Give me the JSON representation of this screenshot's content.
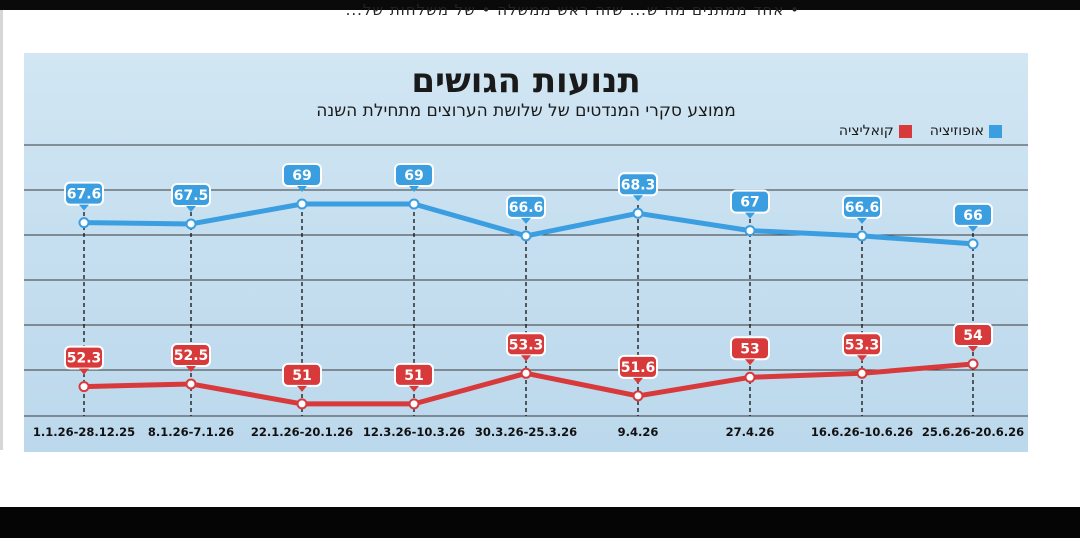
{
  "page": {
    "top_text": "• אחד ממתנים מה ש... שזה ראש ממשלה • של משלחות של..."
  },
  "colors": {
    "opposition": "#3b9ee0",
    "coalition": "#d8393a",
    "gridline": "#3a3a3a"
  },
  "chart_data": {
    "type": "line",
    "title": "תנועות הגושים",
    "subtitle": "ממוצע סקרי המנדטים של שלושת הערוצים מתחילת השנה",
    "xlabel": "",
    "ylabel": "",
    "categories": [
      "1.1.26-28.12.25",
      "8.1.26-7.1.26",
      "22.1.26-20.1.26",
      "12.3.26-10.3.26",
      "30.3.26-25.3.26",
      "9.4.26",
      "27.4.26",
      "16.6.26-10.6.26",
      "25.6.26-20.6.26"
    ],
    "series": [
      {
        "name": "אופוזיציה",
        "values": [
          67.6,
          67.5,
          69,
          69,
          66.6,
          68.3,
          67,
          66.6,
          66
        ]
      },
      {
        "name": "קואליציה",
        "values": [
          52.3,
          52.5,
          51,
          51,
          53.3,
          51.6,
          53,
          53.3,
          54
        ]
      }
    ],
    "grid": true,
    "legend_position": "top-right"
  }
}
